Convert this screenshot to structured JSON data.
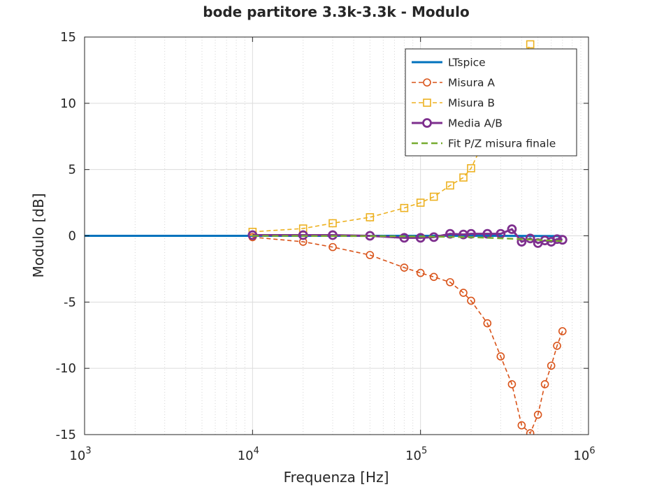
{
  "chart_data": {
    "type": "line",
    "title": "bode partitore 3.3k-3.3k - Modulo",
    "xlabel": "Frequenza [Hz]",
    "ylabel": "Modulo [dB]",
    "xscale": "log",
    "xlim": [
      1000,
      1000000
    ],
    "ylim": [
      -15,
      15
    ],
    "grid": true,
    "minor_grid_x": true,
    "legend_position": "top-right",
    "x_ticks": [
      {
        "value": 1000,
        "base": "10",
        "exp": "3"
      },
      {
        "value": 10000,
        "base": "10",
        "exp": "4"
      },
      {
        "value": 100000,
        "base": "10",
        "exp": "5"
      },
      {
        "value": 1000000,
        "base": "10",
        "exp": "6"
      }
    ],
    "y_ticks": [
      {
        "value": 15,
        "label": "15"
      },
      {
        "value": 10,
        "label": "10"
      },
      {
        "value": 5,
        "label": "5"
      },
      {
        "value": 0,
        "label": "0"
      },
      {
        "value": -5,
        "label": "-5"
      },
      {
        "value": -10,
        "label": "-10"
      },
      {
        "value": -15,
        "label": "-15"
      }
    ],
    "series": [
      {
        "name": "LTspice",
        "color": "#0072BD",
        "line": "solid",
        "marker": "none",
        "x": [
          1000,
          10000,
          100000,
          300000,
          700000
        ],
        "y": [
          0,
          0,
          0,
          0,
          -0.02
        ]
      },
      {
        "name": "Misura A",
        "color": "#D95319",
        "line": "dashed",
        "marker": "circle",
        "x": [
          10000,
          20000,
          30000,
          50000,
          80000,
          100000,
          120000,
          150000,
          180000,
          200000,
          250000,
          300000,
          350000,
          400000,
          450000,
          500000,
          550000,
          600000,
          650000,
          700000
        ],
        "y": [
          -0.1,
          -0.45,
          -0.85,
          -1.45,
          -2.4,
          -2.8,
          -3.1,
          -3.5,
          -4.3,
          -4.9,
          -6.6,
          -9.1,
          -11.2,
          -14.3,
          -14.9,
          -13.5,
          -11.2,
          -9.8,
          -8.3,
          -7.2
        ]
      },
      {
        "name": "Misura B",
        "color": "#EDB120",
        "line": "dashed",
        "marker": "square",
        "x": [
          10000,
          20000,
          30000,
          50000,
          80000,
          100000,
          120000,
          150000,
          180000,
          200000,
          450000
        ],
        "y": [
          0.3,
          0.55,
          0.95,
          1.4,
          2.1,
          2.5,
          2.95,
          3.8,
          4.4,
          5.1,
          14.45
        ]
      },
      {
        "name": "Media A/B",
        "color": "#7E2F8E",
        "line": "solid",
        "marker": "circle-bold",
        "x": [
          10000,
          20000,
          30000,
          50000,
          80000,
          100000,
          120000,
          150000,
          180000,
          200000,
          250000,
          300000,
          350000,
          400000,
          450000,
          500000,
          550000,
          600000,
          650000,
          700000
        ],
        "y": [
          0.05,
          0.05,
          0.05,
          0.0,
          -0.15,
          -0.15,
          -0.1,
          0.15,
          0.1,
          0.15,
          0.15,
          0.15,
          0.5,
          -0.45,
          -0.2,
          -0.55,
          -0.35,
          -0.45,
          -0.25,
          -0.3
        ]
      },
      {
        "name": "Fit P/Z misura finale",
        "color": "#77AC30",
        "line": "dashed",
        "marker": "none",
        "x": [
          10000,
          50000,
          100000,
          200000,
          400000,
          700000
        ],
        "y": [
          0,
          -0.02,
          -0.05,
          -0.1,
          -0.25,
          -0.4
        ]
      }
    ]
  }
}
